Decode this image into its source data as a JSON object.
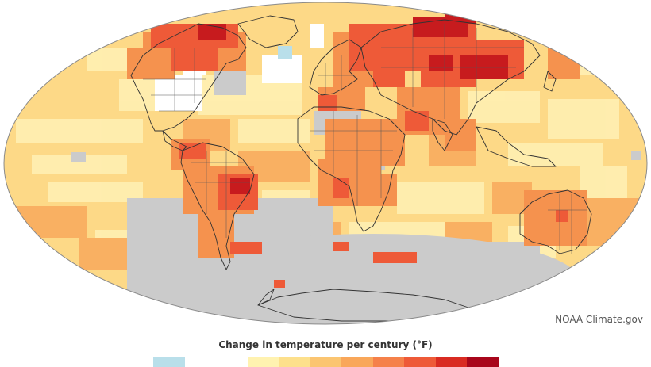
{
  "credit": "NOAA Climate.gov",
  "legend": {
    "title": "Change in temperature per century (°F)",
    "colors": [
      "#b9dfea",
      "#ffffff",
      "#ffffff",
      "#fff2b0",
      "#fde08c",
      "#fbc571",
      "#f9a75a",
      "#f5814a",
      "#ee5a38",
      "#d92b22",
      "#a8061b"
    ]
  },
  "map": {
    "ocean_color": "#fdd987",
    "nodata_color": "#cbcbcb",
    "outline_color": "#999999"
  }
}
